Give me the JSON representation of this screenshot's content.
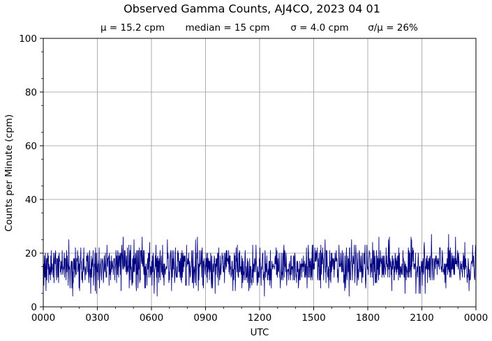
{
  "chart_data": {
    "type": "line",
    "title": "Observed Gamma Counts, AJ4CO, 2023 04 01",
    "stats": [
      "μ = 15.2 cpm",
      "median = 15 cpm",
      "σ = 4.0 cpm",
      "σ/μ = 26%"
    ],
    "xlabel": "UTC",
    "ylabel": "Counts per Minute (cpm)",
    "x_tick_labels": [
      "0000",
      "0300",
      "0600",
      "0900",
      "1200",
      "1500",
      "1800",
      "2100",
      "0000"
    ],
    "y_tick_labels": [
      "0",
      "20",
      "40",
      "60",
      "80",
      "100"
    ],
    "xlim_hours": [
      0,
      24
    ],
    "ylim": [
      0,
      100
    ],
    "grid": true,
    "line_color": "#000080",
    "grid_color": "#9a9a9a",
    "series": [
      {
        "x_unit": "hours UTC (one sample per minute)",
        "values_per_minute_statistics": {
          "mean": 15.2,
          "median": 15,
          "std": 4.0,
          "max_approx": 29,
          "min_approx": 4
        }
      }
    ]
  }
}
